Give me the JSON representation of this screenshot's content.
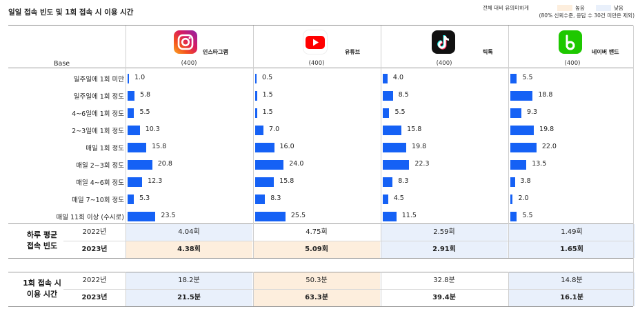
{
  "title": "일일 접속 빈도 및 1회 접속 시 이용 시간",
  "legend": {
    "caption": "전체 대비 유의미하게",
    "high_label": "높음",
    "low_label": "낮음",
    "note": "(80% 신뢰수준, 응답 수 30건 미만은 제외)",
    "colors": {
      "high": "#fdeedd",
      "low": "#e9f0fb"
    }
  },
  "platforms": [
    {
      "name": "인스타그램",
      "icon": "instagram-logo-icon",
      "base": "(400)"
    },
    {
      "name": "유튜브",
      "icon": "youtube-logo-icon",
      "base": "(400)"
    },
    {
      "name": "틱톡",
      "icon": "tiktok-logo-icon",
      "base": "(400)"
    },
    {
      "name": "네이버 밴드",
      "icon": "naver-band-logo-icon",
      "base": "(400)"
    }
  ],
  "base_label": "Base",
  "bar_color": "#1561f5",
  "chart_data": {
    "type": "bar",
    "categories": [
      "일주일에 1회 미만",
      "일주일에 1회 정도",
      "4~6일에 1회 정도",
      "2~3일에 1회 정도",
      "매일 1회 정도",
      "매일 2~3회 정도",
      "매일 4~6회 정도",
      "매일 7~10회 정도",
      "매일 11회 이상 (수시로)"
    ],
    "series": [
      {
        "name": "인스타그램",
        "values": [
          1.0,
          5.8,
          5.5,
          10.3,
          15.8,
          20.8,
          12.3,
          5.3,
          23.5
        ]
      },
      {
        "name": "유튜브",
        "values": [
          0.5,
          1.5,
          1.5,
          7.0,
          16.0,
          24.0,
          15.8,
          8.3,
          25.5
        ]
      },
      {
        "name": "틱톡",
        "values": [
          4.0,
          8.5,
          5.5,
          15.8,
          19.8,
          22.3,
          8.3,
          4.5,
          11.5
        ]
      },
      {
        "name": "네이버 밴드",
        "values": [
          5.5,
          18.8,
          9.3,
          19.8,
          22.0,
          13.5,
          3.8,
          2.0,
          5.5
        ]
      }
    ],
    "value_labels": [
      [
        "1.0",
        "5.8",
        "5.5",
        "10.3",
        "15.8",
        "20.8",
        "12.3",
        "5.3",
        "23.5"
      ],
      [
        "0.5",
        "1.5",
        "1.5",
        "7.0",
        "16.0",
        "24.0",
        "15.8",
        "8.3",
        "25.5"
      ],
      [
        "4.0",
        "8.5",
        "5.5",
        "15.8",
        "19.8",
        "22.3",
        "8.3",
        "4.5",
        "11.5"
      ],
      [
        "5.5",
        "18.8",
        "9.3",
        "19.8",
        "22.0",
        "13.5",
        "3.8",
        "2.0",
        "5.5"
      ]
    ]
  },
  "summary": [
    {
      "label_line1": "하루 평균",
      "label_line2": "접속 빈도",
      "rows": [
        {
          "year": "2022년",
          "values": [
            "4.04회",
            "4.75회",
            "2.59회",
            "1.49회"
          ],
          "highlight": [
            "low",
            "none",
            "low",
            "low"
          ]
        },
        {
          "year": "2023년",
          "values": [
            "4.38회",
            "5.09회",
            "2.91회",
            "1.65회"
          ],
          "highlight": [
            "high",
            "high",
            "low",
            "low"
          ]
        }
      ]
    },
    {
      "label_line1": "1회 접속 시",
      "label_line2": "이용 시간",
      "rows": [
        {
          "year": "2022년",
          "values": [
            "18.2분",
            "50.3분",
            "32.8분",
            "14.8분"
          ],
          "highlight": [
            "low",
            "high",
            "none",
            "low"
          ]
        },
        {
          "year": "2023년",
          "values": [
            "21.5분",
            "63.3분",
            "39.4분",
            "16.1분"
          ],
          "highlight": [
            "low",
            "high",
            "none",
            "low"
          ]
        }
      ]
    }
  ]
}
